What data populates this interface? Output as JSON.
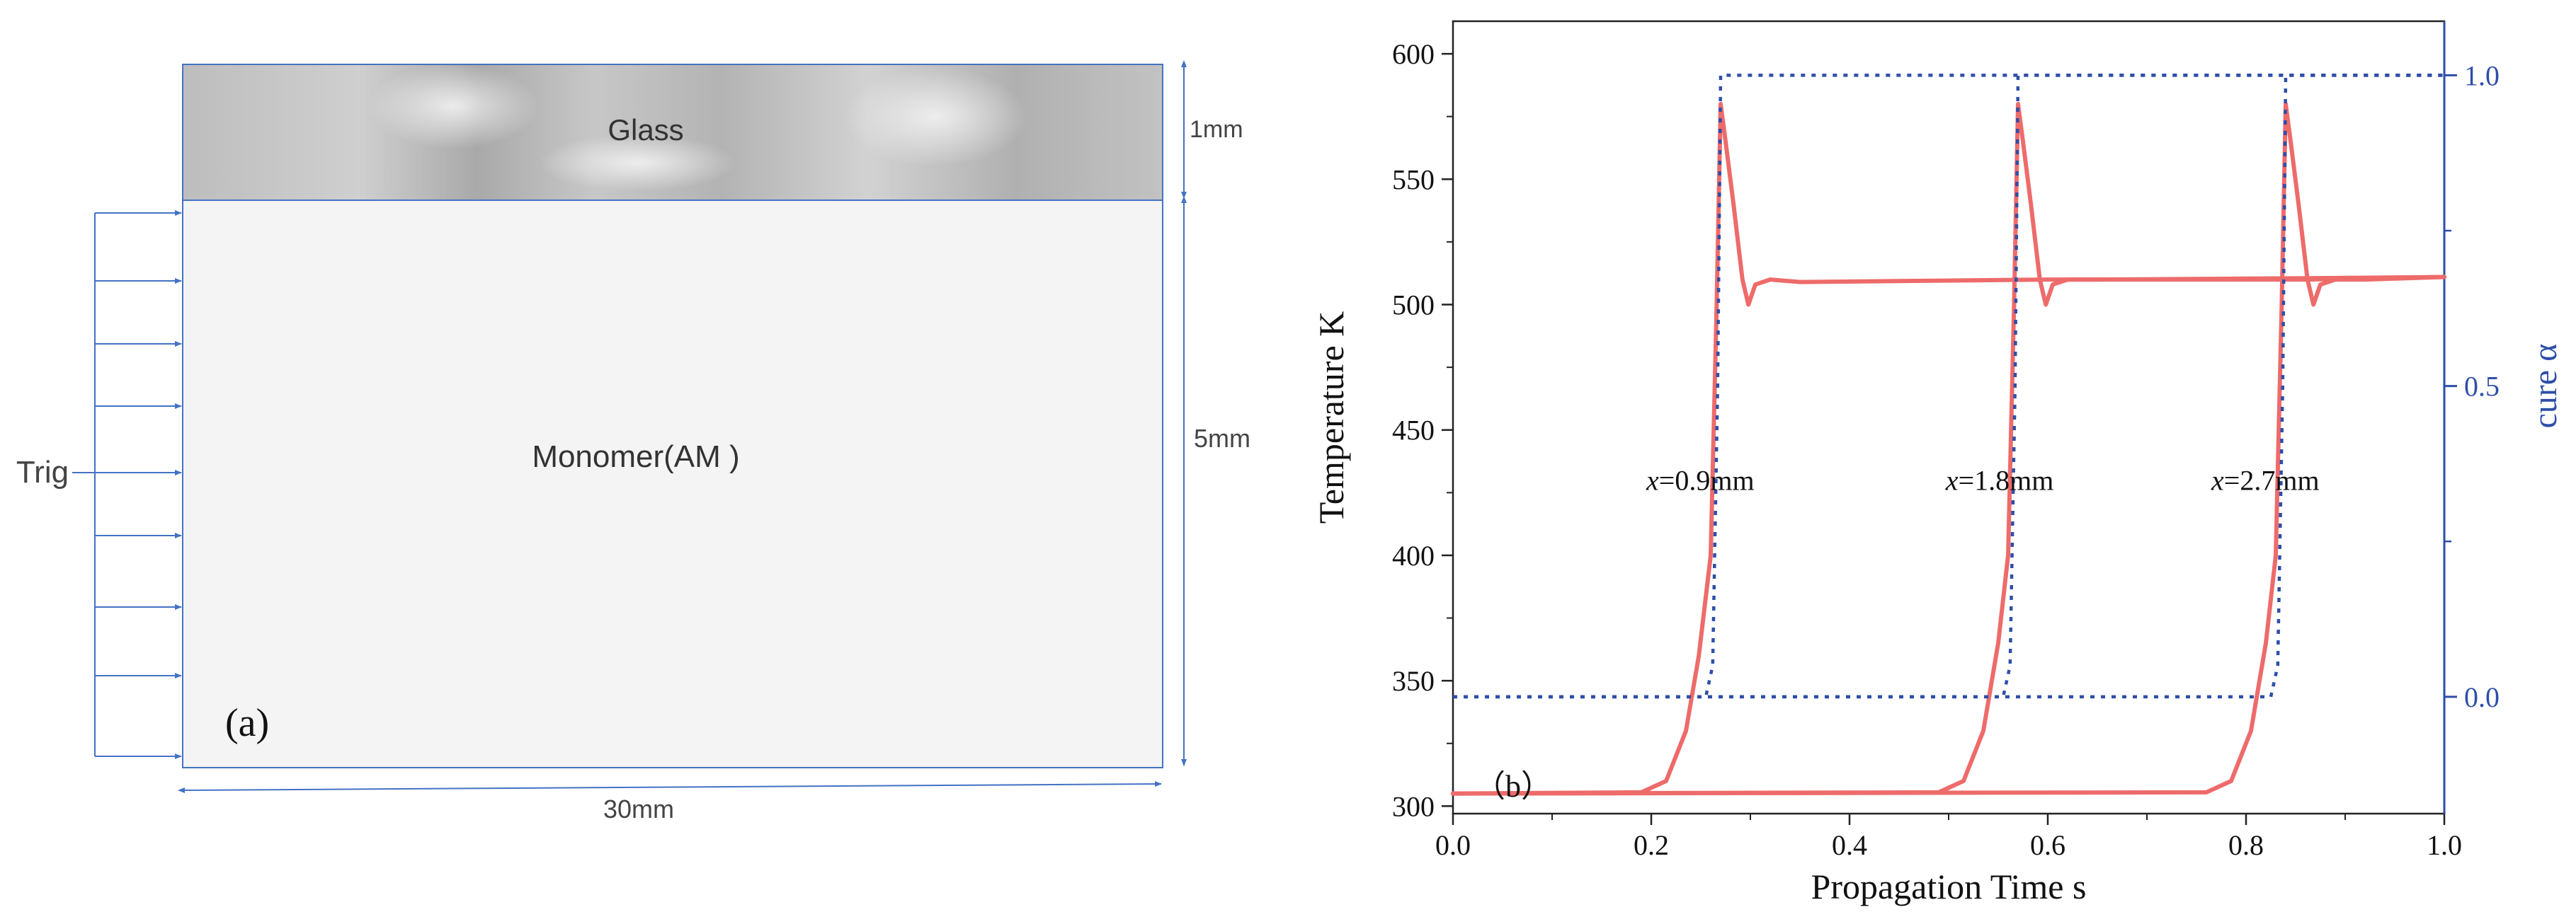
{
  "panel_a": {
    "glass_label": "Glass",
    "monomer_label": "Monomer(AM )",
    "trig_label": "Trig",
    "dim_glass": "1mm",
    "dim_monomer": "5mm",
    "dim_width": "30mm",
    "panel_label": "(a)",
    "colors": {
      "outline": "#4472c4",
      "glass_base": "#c4c4c4",
      "monomer_fill": "#f3f4f3"
    }
  },
  "panel_b": {
    "panel_label": "（b）",
    "colors": {
      "temperature": "#ee6b6b",
      "cure": "#2e4ea8"
    }
  },
  "chart_data": {
    "type": "line",
    "xlabel": "Propagation Time  s",
    "ylabel": "Temperature  K",
    "y2label": "cure α",
    "xlim": [
      0,
      1.0
    ],
    "ylim": [
      297,
      613
    ],
    "y2lim": [
      -0.188,
      1.087
    ],
    "x_ticks": [
      "0.0",
      "0.2",
      "0.4",
      "0.6",
      "0.8",
      "1.0"
    ],
    "y_ticks": [
      "300",
      "350",
      "400",
      "450",
      "500",
      "550",
      "600"
    ],
    "y2_ticks": [
      "0.0",
      "0.5",
      "1.0"
    ],
    "grid": false,
    "annotations": [
      {
        "text_italic": "x",
        "text": "=0.9mm",
        "x": 0.195,
        "y": 430
      },
      {
        "text_italic": "x",
        "text": "=1.8mm",
        "x": 0.497,
        "y": 430
      },
      {
        "text_italic": "x",
        "text": "=2.7mm",
        "x": 0.765,
        "y": 430
      }
    ],
    "series": [
      {
        "axis": "left",
        "style": "solid",
        "x": [
          0.0,
          0.19,
          0.215,
          0.235,
          0.248,
          0.26,
          0.266,
          0.27,
          0.275,
          0.283,
          0.292,
          0.298,
          0.305,
          0.32,
          0.35,
          0.6,
          0.86,
          1.0
        ],
        "values": [
          305,
          305.5,
          310,
          330,
          360,
          400,
          500,
          580,
          565,
          540,
          510,
          500,
          508,
          510,
          509,
          510,
          510,
          511
        ]
      },
      {
        "axis": "left",
        "style": "solid",
        "x": [
          0.0,
          0.49,
          0.515,
          0.535,
          0.55,
          0.56,
          0.566,
          0.57,
          0.575,
          0.583,
          0.592,
          0.598,
          0.605,
          0.62,
          0.65,
          0.86,
          1.0
        ],
        "values": [
          305,
          305.5,
          310,
          330,
          365,
          400,
          500,
          580,
          565,
          540,
          510,
          500,
          508,
          510,
          510,
          510.5,
          511
        ]
      },
      {
        "axis": "left",
        "style": "solid",
        "x": [
          0.0,
          0.76,
          0.785,
          0.805,
          0.82,
          0.83,
          0.836,
          0.84,
          0.845,
          0.853,
          0.862,
          0.868,
          0.875,
          0.89,
          0.92,
          1.0
        ],
        "values": [
          305,
          305.5,
          310,
          330,
          365,
          400,
          500,
          580,
          565,
          540,
          510,
          500,
          508,
          510,
          510,
          511
        ]
      },
      {
        "axis": "right",
        "style": "dotted",
        "x": [
          0.0,
          0.255,
          0.262,
          0.267,
          0.27,
          1.0
        ],
        "values": [
          0.0,
          0.0,
          0.05,
          0.5,
          1.0,
          1.0
        ]
      },
      {
        "axis": "right",
        "style": "dotted",
        "x": [
          0.0,
          0.555,
          0.562,
          0.567,
          0.57,
          1.0
        ],
        "values": [
          0.0,
          0.0,
          0.05,
          0.5,
          1.0,
          1.0
        ]
      },
      {
        "axis": "right",
        "style": "dotted",
        "x": [
          0.0,
          0.825,
          0.832,
          0.837,
          0.84,
          1.0
        ],
        "values": [
          0.0,
          0.0,
          0.05,
          0.5,
          1.0,
          1.0
        ]
      }
    ]
  }
}
